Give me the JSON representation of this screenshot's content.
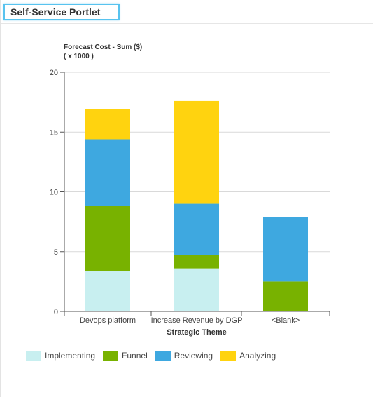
{
  "portlet": {
    "title": "Self-Service Portlet"
  },
  "colors": {
    "accent_border": "#58c3ef",
    "gridline": "#d9d9d9",
    "axis": "#555555"
  },
  "chart_data": {
    "type": "bar",
    "stacked": true,
    "ylabel": "Forecast Cost - Sum ($)",
    "yunit": "( x 1000 )",
    "xlabel": "Strategic Theme",
    "categories": [
      "Devops platform",
      "Increase Revenue by DGP",
      "<Blank>"
    ],
    "ylim": [
      0,
      20
    ],
    "yticks": [
      0,
      5,
      10,
      15,
      20
    ],
    "grid": true,
    "legend_position": "bottom",
    "series": [
      {
        "name": "Implementing",
        "color": "#c8eff0",
        "values": [
          3.4,
          3.6,
          0
        ]
      },
      {
        "name": "Funnel",
        "color": "#78b200",
        "values": [
          5.4,
          1.1,
          2.5
        ]
      },
      {
        "name": "Reviewing",
        "color": "#3ea8e0",
        "values": [
          5.6,
          4.3,
          5.4
        ]
      },
      {
        "name": "Analyzing",
        "color": "#ffd30f",
        "values": [
          2.5,
          8.6,
          0
        ]
      }
    ]
  }
}
